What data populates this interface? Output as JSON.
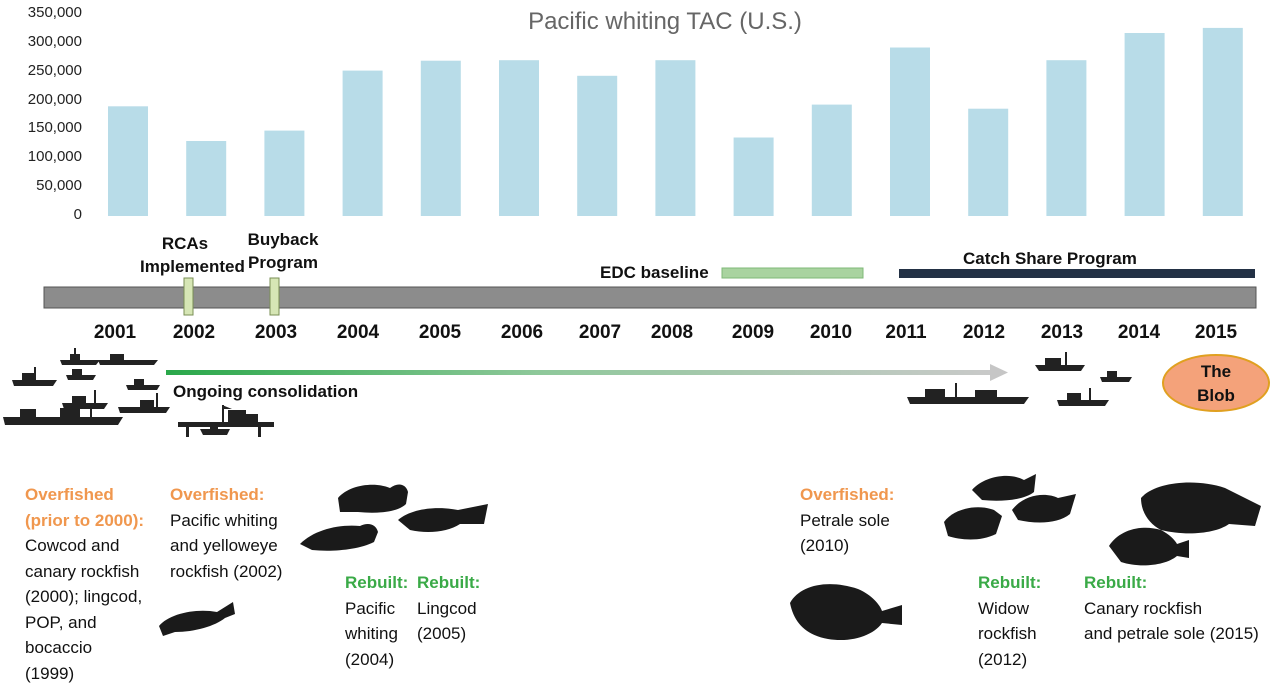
{
  "chart_data": {
    "type": "bar",
    "title": "Pacific whiting TAC (U.S.)",
    "categories": [
      "2001",
      "2002",
      "2003",
      "2004",
      "2005",
      "2006",
      "2007",
      "2008",
      "2009",
      "2010",
      "2011",
      "2012",
      "2013",
      "2014",
      "2015"
    ],
    "values": [
      190000,
      130000,
      148000,
      252000,
      269000,
      270000,
      243000,
      270000,
      136000,
      193000,
      292000,
      186000,
      270000,
      317000,
      326000
    ],
    "ylim": [
      0,
      350000
    ],
    "yticks": [
      "0",
      "50,000",
      "100,000",
      "150,000",
      "200,000",
      "250,000",
      "300,000",
      "350,000"
    ],
    "bar_color": "#b8dce8",
    "grid": false
  },
  "timeline": {
    "years": [
      "2001",
      "2002",
      "2003",
      "2004",
      "2005",
      "2006",
      "2007",
      "2008",
      "2009",
      "2010",
      "2011",
      "2012",
      "2013",
      "2014",
      "2015"
    ],
    "events": {
      "rcas_line1": "RCAs",
      "rcas_line2": "Implemented",
      "buyback_line1": "Buyback",
      "buyback_line2": "Program",
      "edc_label": "EDC baseline",
      "catch_share_label": "Catch Share Program"
    },
    "consolidation_label": "Ongoing consolidation",
    "blob_line1": "The",
    "blob_line2": "Blob",
    "colors": {
      "bar_axis": "#8c8c8c",
      "edc": "#a9d3a0",
      "catch_share": "#233145",
      "marker": "#d6e6b5",
      "blob": "#f4a27a",
      "blob_border": "#e0a020"
    }
  },
  "notes": {
    "n1": {
      "head1": "Overfished",
      "head2": "(prior to 2000):",
      "lines": [
        "Cowcod and",
        "canary rockfish",
        "(2000); lingcod,",
        "POP,  and",
        "bocaccio",
        "(1999)"
      ]
    },
    "n2": {
      "head": "Overfished:",
      "lines": [
        "Pacific whiting",
        "and yelloweye",
        "rockfish (2002)"
      ]
    },
    "n3": {
      "head": "Rebuilt:",
      "lines": [
        "Pacific",
        "whiting",
        "(2004)"
      ]
    },
    "n4": {
      "head": "Rebuilt:",
      "lines": [
        "Lingcod",
        "(2005)"
      ]
    },
    "n5": {
      "head": "Overfished:",
      "lines": [
        "Petrale sole",
        "(2010)"
      ]
    },
    "n6": {
      "head": "Rebuilt:",
      "lines": [
        "Widow",
        "rockfish",
        "(2012)"
      ]
    },
    "n7": {
      "head": "Rebuilt:",
      "lines": [
        "Canary rockfish",
        "and petrale sole (2015)"
      ]
    }
  }
}
